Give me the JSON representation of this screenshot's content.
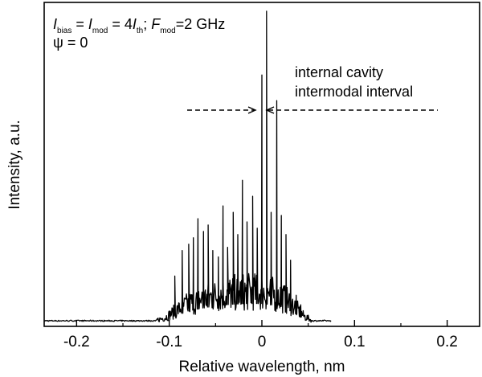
{
  "chart_data": {
    "type": "line",
    "title": "",
    "xlabel": "Relative wavelength, nm",
    "ylabel": "Intensity, a.u.",
    "xlim": [
      -0.235,
      0.235
    ],
    "ylim": [
      0,
      1.0
    ],
    "x_ticks": [
      -0.2,
      -0.1,
      0.0,
      0.1,
      0.2
    ],
    "x_tick_labels": [
      "-0.2",
      "-0.1",
      "0",
      "0.1",
      "0.2"
    ],
    "y_ticks_labeled": false,
    "grid": false,
    "legend": "none",
    "line_color": "#000000",
    "annotation_params": {
      "I_letter": "I",
      "bias_sub": "bias",
      "mod_sub": "mod",
      "eq1": " = ",
      "eq2": " = 4",
      "th_sub": "th",
      "semicolon": "; ",
      "F_letter": "F",
      "F_value": "=2 GHz",
      "psi": "ψ = 0"
    },
    "annotation_cavity": [
      "internal cavity",
      "intermodal interval"
    ],
    "series": [
      {
        "envelope": [
          [
            -0.235,
            0.01
          ],
          [
            -0.12,
            0.012
          ],
          [
            -0.105,
            0.03
          ],
          [
            -0.095,
            0.06
          ],
          [
            -0.08,
            0.1
          ],
          [
            -0.06,
            0.13
          ],
          [
            -0.04,
            0.15
          ],
          [
            -0.02,
            0.16
          ],
          [
            0.0,
            0.16
          ],
          [
            0.02,
            0.14
          ],
          [
            0.035,
            0.09
          ],
          [
            0.045,
            0.04
          ],
          [
            0.055,
            0.015
          ],
          [
            0.075,
            0.01
          ]
        ],
        "peaks": [
          [
            -0.094,
            0.15
          ],
          [
            -0.086,
            0.23
          ],
          [
            -0.079,
            0.25
          ],
          [
            -0.074,
            0.27
          ],
          [
            -0.069,
            0.33
          ],
          [
            -0.063,
            0.29
          ],
          [
            -0.058,
            0.31
          ],
          [
            -0.053,
            0.23
          ],
          [
            -0.047,
            0.21
          ],
          [
            -0.042,
            0.37
          ],
          [
            -0.037,
            0.24
          ],
          [
            -0.031,
            0.35
          ],
          [
            -0.026,
            0.28
          ],
          [
            -0.021,
            0.45
          ],
          [
            -0.016,
            0.32
          ],
          [
            -0.01,
            0.4
          ],
          [
            -0.005,
            0.3
          ],
          [
            0.0,
            0.78
          ],
          [
            0.005,
            0.98
          ],
          [
            0.01,
            0.35
          ],
          [
            0.016,
            0.7
          ],
          [
            0.021,
            0.34
          ],
          [
            0.026,
            0.28
          ],
          [
            0.031,
            0.2
          ],
          [
            0.037,
            0.09
          ],
          [
            0.042,
            0.06
          ]
        ]
      }
    ]
  }
}
